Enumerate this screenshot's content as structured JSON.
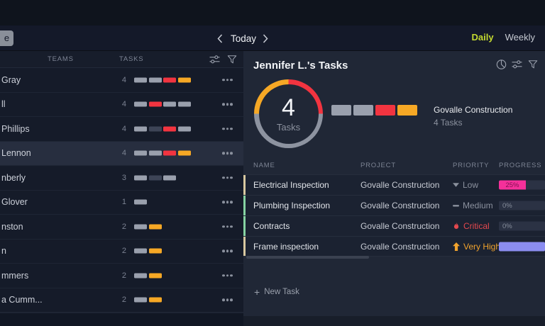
{
  "topbar": {
    "left_button_label": "e",
    "date_nav": {
      "label": "Today"
    },
    "view_toggle": {
      "daily": "Daily",
      "weekly": "Weekly",
      "active": "Daily"
    }
  },
  "left_panel": {
    "columns": {
      "teams": "TEAMS",
      "tasks": "TASKS"
    },
    "rows": [
      {
        "name": "Gray",
        "count": "4",
        "bars": [
          "gray",
          "gray",
          "red",
          "orange"
        ],
        "selected": false
      },
      {
        "name": "ll",
        "count": "4",
        "bars": [
          "gray",
          "red",
          "gray",
          "gray"
        ],
        "selected": false
      },
      {
        "name": "Phillips",
        "count": "4",
        "bars": [
          "gray",
          "dark",
          "red",
          "gray"
        ],
        "selected": false
      },
      {
        "name": "Lennon",
        "count": "4",
        "bars": [
          "gray",
          "gray",
          "red",
          "orange"
        ],
        "selected": true
      },
      {
        "name": "nberly",
        "count": "3",
        "bars": [
          "gray",
          "dark",
          "gray"
        ],
        "selected": false
      },
      {
        "name": "Glover",
        "count": "1",
        "bars": [
          "gray"
        ],
        "selected": false
      },
      {
        "name": "nston",
        "count": "2",
        "bars": [
          "gray",
          "orange"
        ],
        "selected": false
      },
      {
        "name": "n",
        "count": "2",
        "bars": [
          "gray",
          "orange"
        ],
        "selected": false
      },
      {
        "name": "mmers",
        "count": "2",
        "bars": [
          "gray",
          "orange"
        ],
        "selected": false
      },
      {
        "name": "a Cumm...",
        "count": "2",
        "bars": [
          "gray",
          "orange"
        ],
        "selected": false
      }
    ]
  },
  "right_panel": {
    "title": "Jennifer L.'s Tasks",
    "donut": {
      "count": "4",
      "label": "Tasks",
      "segments": [
        {
          "color": "#f23440",
          "pct": 25
        },
        {
          "color": "#8d93a0",
          "pct": 50
        },
        {
          "color": "#f6a825",
          "pct": 25
        }
      ]
    },
    "summary": {
      "blocks": [
        "gray",
        "gray",
        "red",
        "orange"
      ],
      "project": "Govalle Construction",
      "tasks": "4 Tasks"
    },
    "table": {
      "headers": [
        "NAME",
        "PROJECT",
        "PRIORITY",
        "PROGRESS"
      ],
      "rows": [
        {
          "name": "Electrical Inspection",
          "project": "Govalle Construction",
          "priority": "Low",
          "priority_icon": "down",
          "stripe": "tan",
          "progress_label": "25%",
          "progress_pct": 25,
          "progress_color": "pink"
        },
        {
          "name": "Plumbing Inspection",
          "project": "Govalle Construction",
          "priority": "Medium",
          "priority_icon": "dash",
          "stripe": "green",
          "progress_label": "0%",
          "progress_pct": 0,
          "progress_color": "none"
        },
        {
          "name": "Contracts",
          "project": "Govalle Construction",
          "priority": "Critical",
          "priority_icon": "flame",
          "stripe": "green",
          "progress_label": "0%",
          "progress_pct": 0,
          "progress_color": "none"
        },
        {
          "name": "Frame inspection",
          "project": "Govalle Construction",
          "priority": "Very High",
          "priority_icon": "up",
          "stripe": "tan",
          "progress_label": "",
          "progress_pct": 100,
          "progress_color": "purple"
        }
      ]
    },
    "new_task": {
      "plus": "+",
      "label": "New Task"
    }
  },
  "colors": {
    "accent_lime": "#c3d930",
    "bar_gray": "#9aa0ad",
    "bar_dark": "#3d4456",
    "bar_red": "#f23440",
    "bar_orange": "#f6a825",
    "progress_pink": "#f5309a",
    "progress_pink_text": "#7c1150",
    "progress_purple": "#8b8df0",
    "stripe_tan": "#d8c8a0",
    "stripe_green": "#86d3a2",
    "critical_red": "#e4484e",
    "very_high_orange": "#f1a32d"
  }
}
